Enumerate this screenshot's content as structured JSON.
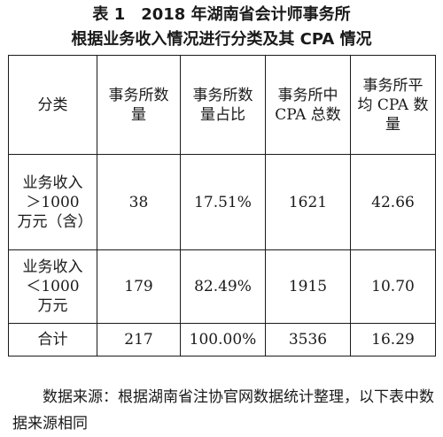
{
  "title_line1": "表 1　2018 年湖南省会计师事务所",
  "title_line2": "根据业务收入情况进行分类及其 CPA 情况",
  "table": {
    "headers": [
      "分类",
      "事务所数量",
      "事务所数量占比",
      "事务所中 CPA 总数",
      "事务所平均 CPA 数量"
    ],
    "rows": [
      {
        "category": "业务收入＞1000 万元（含）",
        "count": "38",
        "share": "17.51%",
        "cpa_total": "1621",
        "cpa_avg": "42.66"
      },
      {
        "category": "业务收入＜1000 万元",
        "count": "179",
        "share": "82.49%",
        "cpa_total": "1915",
        "cpa_avg": "10.70"
      },
      {
        "category": "合计",
        "count": "217",
        "share": "100.00%",
        "cpa_total": "3536",
        "cpa_avg": "16.29"
      }
    ]
  },
  "note": "数据来源：根据湖南省注协官网数据统计整理，以下表中数据来源相同"
}
